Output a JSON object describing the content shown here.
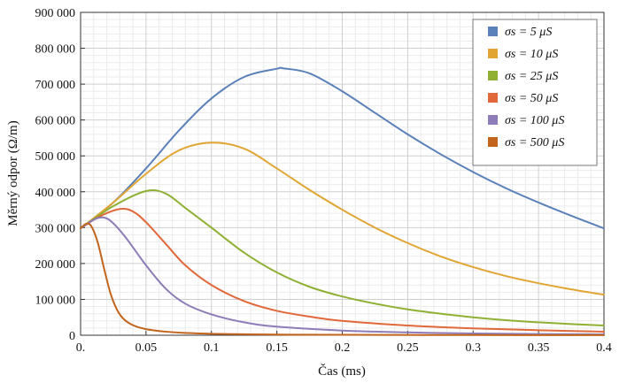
{
  "chart_data": {
    "type": "line",
    "xlabel": "Čas (ms)",
    "ylabel": "Měrný odpor (Ω/m)",
    "xlim": [
      0,
      0.4
    ],
    "ylim": [
      0,
      900000
    ],
    "xticks": [
      "0.",
      "0.05",
      "0.1",
      "0.15",
      "0.2",
      "0.25",
      "0.3",
      "0.35",
      "0.4"
    ],
    "yticks": [
      "0",
      "100 000",
      "200 000",
      "300 000",
      "400 000",
      "500 000",
      "600 000",
      "700 000",
      "800 000",
      "900 000"
    ],
    "grid": true,
    "legend_position": "top-right",
    "series": [
      {
        "name": "σs = 5 μS",
        "color": "#5a81b9",
        "x": [
          0,
          0.025,
          0.05,
          0.075,
          0.1,
          0.125,
          0.15,
          0.155,
          0.175,
          0.2,
          0.225,
          0.25,
          0.275,
          0.3,
          0.325,
          0.35,
          0.375,
          0.4
        ],
        "y": [
          298000,
          370000,
          465000,
          570000,
          660000,
          720000,
          743000,
          744000,
          730000,
          680000,
          620000,
          560000,
          505000,
          455000,
          410000,
          370000,
          333000,
          298000
        ]
      },
      {
        "name": "σs = 10 μS",
        "color": "#e0a532",
        "x": [
          0,
          0.025,
          0.05,
          0.075,
          0.1,
          0.125,
          0.15,
          0.175,
          0.2,
          0.225,
          0.25,
          0.275,
          0.3,
          0.325,
          0.35,
          0.375,
          0.4
        ],
        "y": [
          298000,
          370000,
          450000,
          515000,
          537000,
          520000,
          465000,
          405000,
          350000,
          300000,
          257000,
          220000,
          190000,
          165000,
          145000,
          128000,
          113000
        ]
      },
      {
        "name": "σs = 25 μS",
        "color": "#8fb033",
        "x": [
          0,
          0.025,
          0.05,
          0.065,
          0.08,
          0.1,
          0.125,
          0.15,
          0.175,
          0.2,
          0.225,
          0.25,
          0.275,
          0.3,
          0.325,
          0.35,
          0.375,
          0.4
        ],
        "y": [
          298000,
          360000,
          402000,
          395000,
          355000,
          300000,
          230000,
          175000,
          135000,
          108000,
          88000,
          72000,
          60000,
          50000,
          42000,
          36000,
          31000,
          27000
        ]
      },
      {
        "name": "σs = 50 μS",
        "color": "#e0683a",
        "x": [
          0,
          0.015,
          0.03,
          0.04,
          0.05,
          0.065,
          0.08,
          0.1,
          0.125,
          0.15,
          0.175,
          0.2,
          0.25,
          0.3,
          0.35,
          0.4
        ],
        "y": [
          298000,
          332000,
          352000,
          345000,
          315000,
          255000,
          195000,
          140000,
          95000,
          68000,
          52000,
          40000,
          27000,
          19000,
          14000,
          10000
        ]
      },
      {
        "name": "σs = 100 μS",
        "color": "#8d7cb8",
        "x": [
          0,
          0.01,
          0.018,
          0.025,
          0.035,
          0.05,
          0.065,
          0.08,
          0.1,
          0.125,
          0.15,
          0.2,
          0.25,
          0.3,
          0.35,
          0.4
        ],
        "y": [
          298000,
          322000,
          328000,
          312000,
          270000,
          195000,
          130000,
          88000,
          58000,
          36000,
          24000,
          13000,
          8000,
          5000,
          3500,
          2500
        ]
      },
      {
        "name": "σs = 500 μS",
        "color": "#c2651c",
        "x": [
          0,
          0.004,
          0.008,
          0.013,
          0.018,
          0.023,
          0.028,
          0.033,
          0.04,
          0.05,
          0.065,
          0.08,
          0.1,
          0.15,
          0.2,
          0.3,
          0.4
        ],
        "y": [
          298000,
          310000,
          305000,
          260000,
          185000,
          115000,
          70000,
          45000,
          28000,
          17000,
          10000,
          6500,
          4000,
          2000,
          1200,
          500,
          250
        ]
      }
    ]
  }
}
